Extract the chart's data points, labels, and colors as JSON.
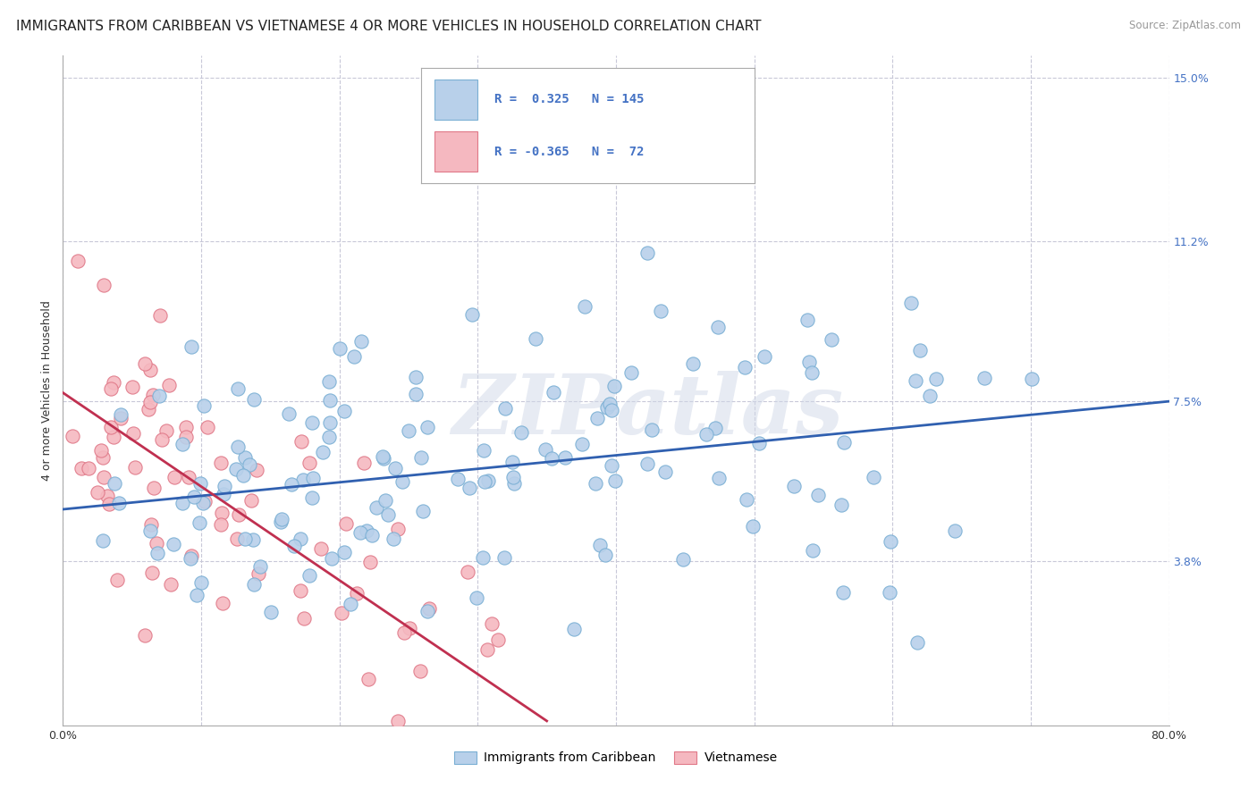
{
  "title": "IMMIGRANTS FROM CARIBBEAN VS VIETNAMESE 4 OR MORE VEHICLES IN HOUSEHOLD CORRELATION CHART",
  "source": "Source: ZipAtlas.com",
  "ylabel": "4 or more Vehicles in Household",
  "legend_caribbean": "Immigrants from Caribbean",
  "legend_vietnamese": "Vietnamese",
  "r_caribbean": 0.325,
  "n_caribbean": 145,
  "r_vietnamese": -0.365,
  "n_vietnamese": 72,
  "xlim": [
    0.0,
    0.8
  ],
  "ylim": [
    0.0,
    0.155
  ],
  "yticks": [
    0.038,
    0.075,
    0.112,
    0.15
  ],
  "ytick_labels": [
    "3.8%",
    "7.5%",
    "11.2%",
    "15.0%"
  ],
  "xticks": [
    0.0,
    0.1,
    0.2,
    0.3,
    0.4,
    0.5,
    0.6,
    0.7,
    0.8
  ],
  "xtick_labels": [
    "0.0%",
    "",
    "",
    "",
    "",
    "",
    "",
    "",
    "80.0%"
  ],
  "color_caribbean": "#b8d0ea",
  "color_caribbean_edge": "#7aafd4",
  "color_caribbean_line": "#3060b0",
  "color_vietnamese": "#f5b8c0",
  "color_vietnamese_edge": "#e07888",
  "color_vietnamese_line": "#c03050",
  "background_color": "#ffffff",
  "grid_color": "#c8c8d8",
  "watermark": "ZIPatlas",
  "title_fontsize": 11,
  "axis_label_fontsize": 9,
  "tick_fontsize": 9,
  "trend_car_x0": 0.0,
  "trend_car_y0": 0.05,
  "trend_car_x1": 0.8,
  "trend_car_y1": 0.075,
  "trend_viet_x0": 0.0,
  "trend_viet_y0": 0.077,
  "trend_viet_x1": 0.35,
  "trend_viet_y1": 0.001
}
